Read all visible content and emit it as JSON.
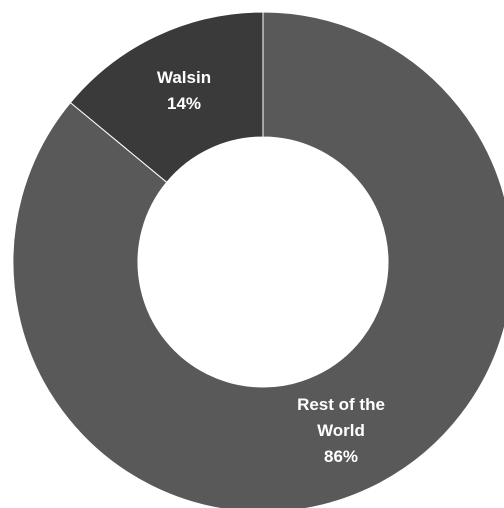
{
  "chart_data": {
    "type": "pie",
    "title": "",
    "slices": [
      {
        "label_lines": [
          "Walsin"
        ],
        "value": 14,
        "value_text": "14%",
        "color": "#3a3a3a"
      },
      {
        "label_lines": [
          "Rest of the",
          "World"
        ],
        "value": 86,
        "value_text": "86%",
        "color": "#595959"
      }
    ],
    "background": "#ffffff"
  }
}
